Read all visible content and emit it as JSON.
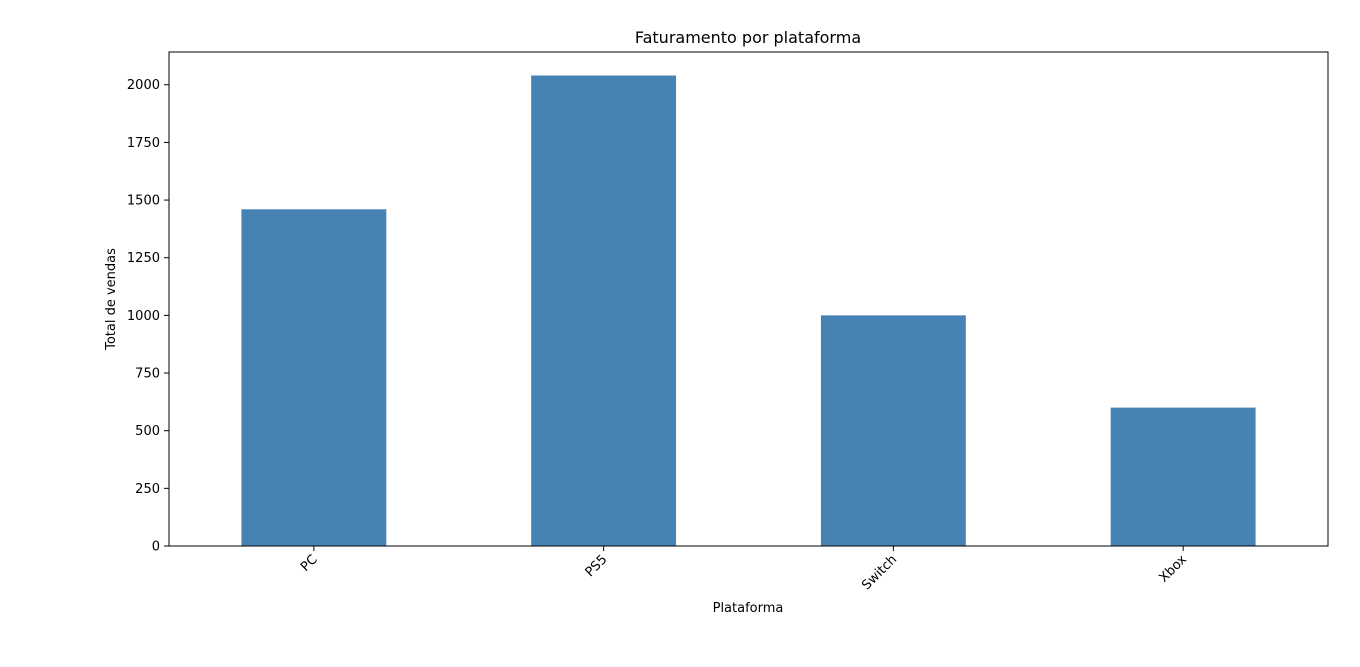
{
  "chart_data": {
    "type": "bar",
    "title": "Faturamento por plataforma",
    "xlabel": "Plataforma",
    "ylabel": "Total de vendas",
    "categories": [
      "PC",
      "PS5",
      "Switch",
      "Xbox"
    ],
    "values": [
      1460,
      2040,
      1000,
      600
    ],
    "ylim": [
      0,
      2142
    ],
    "yticks": [
      0,
      250,
      500,
      750,
      1000,
      1250,
      1500,
      1750,
      2000
    ],
    "xtick_rotation": "45 degrees",
    "grid": false,
    "legend": "none",
    "bar_color": "#4682b4"
  }
}
